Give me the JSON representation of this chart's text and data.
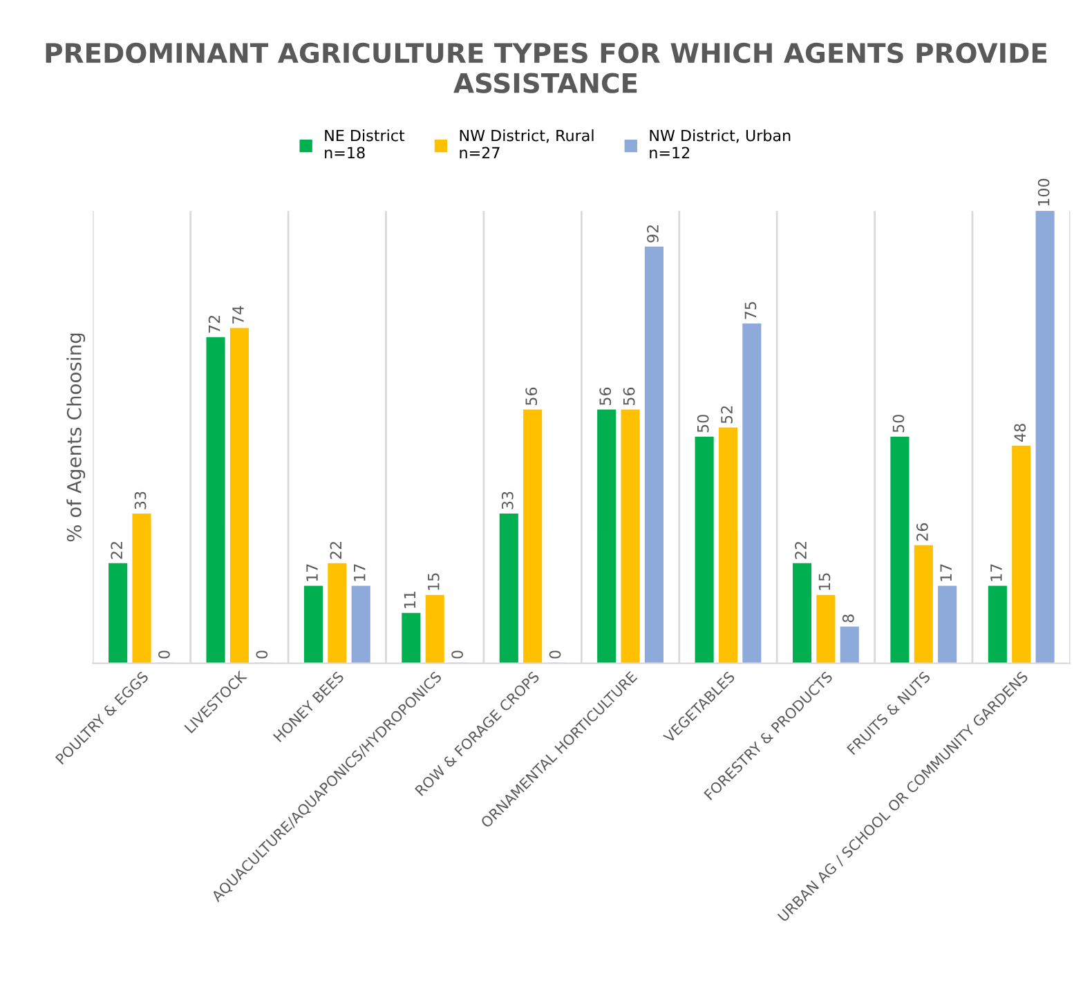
{
  "chart_data": {
    "type": "bar",
    "title": "PREDOMINANT AGRICULTURE TYPES FOR WHICH AGENTS PROVIDE ASSISTANCE",
    "ylabel": "% of Agents Choosing",
    "categories": [
      "POULTRY & EGGS",
      "LIVESTOCK",
      "HONEY BEES",
      "AQUACULTURE/AQUAPONICS/HYDROPONICS",
      "ROW & FORAGE CROPS",
      "ORNAMENTAL HORTICULTURE",
      "VEGETABLES",
      "FORESTRY & PRODUCTS",
      "FRUITS & NUTS",
      "URBAN AG / SCHOOL OR COMMUNITY GARDENS"
    ],
    "series": [
      {
        "name": "NE District\nn=18",
        "color": "#00b050",
        "values": [
          22,
          72,
          17,
          11,
          33,
          56,
          50,
          22,
          50,
          17
        ]
      },
      {
        "name": "NW District, Rural\nn=27",
        "color": "#ffc000",
        "values": [
          33,
          74,
          22,
          15,
          56,
          56,
          52,
          15,
          26,
          48
        ]
      },
      {
        "name": "NW District, Urban\nn=12",
        "color": "#8eaadb",
        "values": [
          0,
          0,
          17,
          0,
          0,
          92,
          75,
          8,
          17,
          100
        ]
      }
    ],
    "ylim": [
      0,
      100
    ],
    "tick_labels": "x",
    "data_labels": true,
    "legend": "top",
    "grid": "x"
  }
}
